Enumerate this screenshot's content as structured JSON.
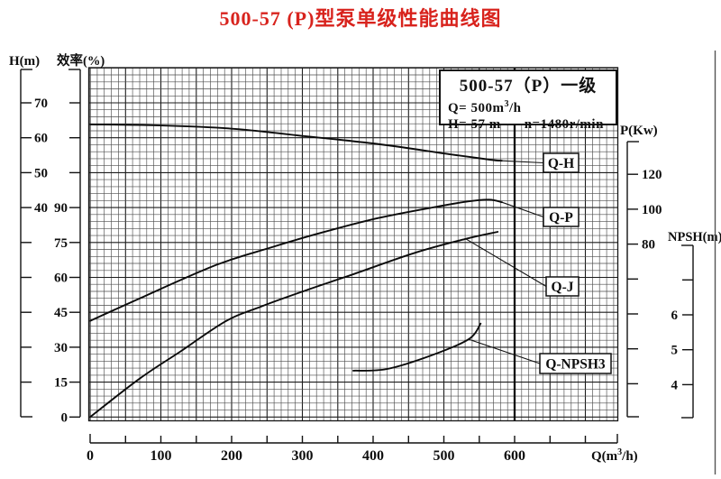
{
  "title": "500-57 (P)型泵单级性能曲线图",
  "info_box": {
    "model": "500-57（P）一级",
    "q_prefix": "Q= 500m",
    "q_sup": "3",
    "q_suffix": "/h",
    "h_text": "H= 57 m",
    "n_text": "n=1480r/min"
  },
  "chart_data": {
    "type": "line",
    "grid": "fine-mesh on, minor every 10 m3/h, major every 50 m3/h",
    "x_axis": {
      "label_prefix": "Q(m",
      "label_sup": "3",
      "label_suffix": "/h)",
      "tick_labels": [
        0,
        100,
        200,
        300,
        400,
        500,
        600
      ],
      "tick_step_minor": 50,
      "range": [
        0,
        745
      ],
      "emphasis_line_q": 600
    },
    "axes": {
      "h": {
        "title": "H(m)",
        "tick_labels": [
          "70",
          "60",
          "50",
          "40"
        ],
        "range_shown": [
          70,
          40
        ]
      },
      "eff": {
        "title": "效率(%)",
        "tick_labels": [
          "90",
          "75",
          "60",
          "45",
          "30",
          "15",
          "0"
        ],
        "range_shown": [
          90,
          0
        ]
      },
      "p": {
        "title": "P(Kw)",
        "tick_labels": [
          "120",
          "100",
          "80"
        ],
        "range_shown": [
          120,
          80
        ]
      },
      "npsh": {
        "title": "NPSH(m)",
        "tick_labels": [
          "6",
          "5",
          "4"
        ],
        "range_shown": [
          6,
          4
        ]
      }
    },
    "series": [
      {
        "name": "Q-H",
        "axis": "h",
        "leader_index": -1,
        "label_box": [
          603,
          170,
          39,
          21
        ],
        "points": [
          [
            0,
            63.9
          ],
          [
            100,
            63.6
          ],
          [
            205,
            62.6
          ],
          [
            305,
            60.5
          ],
          [
            410,
            58.2
          ],
          [
            510,
            55.3
          ],
          [
            565,
            53.8
          ],
          [
            582,
            53.5
          ]
        ]
      },
      {
        "name": "Q-P",
        "axis": "p",
        "leader_index": -1,
        "label_box": [
          603,
          230,
          39,
          21
        ],
        "points": [
          [
            0,
            36
          ],
          [
            76,
            50
          ],
          [
            178,
            68
          ],
          [
            255,
            78
          ],
          [
            331,
            87
          ],
          [
            408,
            95
          ],
          [
            484,
            101
          ],
          [
            535,
            104.5
          ],
          [
            564,
            105.5
          ],
          [
            582,
            104
          ]
        ]
      },
      {
        "name": "Q-J",
        "axis": "eff",
        "leader_index": -2,
        "label_box": [
          606,
          307,
          36,
          21
        ],
        "points": [
          [
            0,
            0
          ],
          [
            70,
            16.5
          ],
          [
            127,
            28
          ],
          [
            191,
            41
          ],
          [
            242,
            47.5
          ],
          [
            306,
            54.5
          ],
          [
            369,
            61
          ],
          [
            459,
            70.5
          ],
          [
            531,
            76.5
          ],
          [
            576,
            79.5
          ]
        ]
      },
      {
        "name": "Q-NPSH3",
        "axis": "npsh",
        "leader_index": -2,
        "label_box": [
          599,
          392,
          79,
          22
        ],
        "points": [
          [
            372,
            4.4
          ],
          [
            420,
            4.45
          ],
          [
            484,
            4.85
          ],
          [
            535,
            5.3
          ],
          [
            552,
            5.75
          ]
        ]
      }
    ],
    "rated_point": {
      "q": 500,
      "h": 57,
      "n_rpm": 1480
    }
  }
}
